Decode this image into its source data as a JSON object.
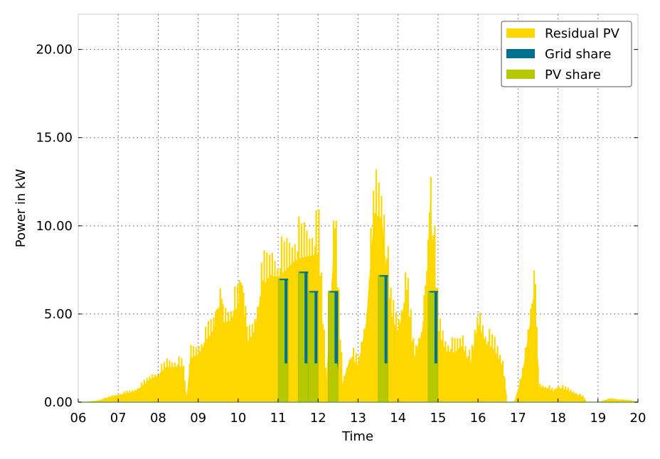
{
  "chart_data": {
    "type": "area",
    "title": "",
    "xlabel": "Time",
    "ylabel": "Power in kW",
    "xlim": [
      6,
      20
    ],
    "ylim": [
      0,
      22
    ],
    "x_ticks": [
      "06",
      "07",
      "08",
      "09",
      "10",
      "11",
      "12",
      "13",
      "14",
      "15",
      "16",
      "17",
      "18",
      "19",
      "20"
    ],
    "y_ticks": [
      "0.00",
      "5.00",
      "10.00",
      "15.00",
      "20.00"
    ],
    "y_tick_values": [
      0,
      5,
      10,
      15,
      20
    ],
    "grid": true,
    "legend_position": "upper right",
    "legend": [
      "Residual PV",
      "Grid share",
      "PV share"
    ],
    "colors": {
      "residual_pv": "#FFD700",
      "grid_share": "#00708F",
      "pv_share": "#B5C800",
      "baseline": "#6a9a5a"
    },
    "series": [
      {
        "name": "Residual PV",
        "x": [
          6.0,
          6.3,
          6.5,
          6.8,
          7.0,
          7.2,
          7.4,
          7.6,
          7.8,
          8.0,
          8.2,
          8.4,
          8.6,
          8.7,
          8.8,
          9.0,
          9.2,
          9.4,
          9.5,
          9.6,
          9.8,
          10.0,
          10.1,
          10.2,
          10.4,
          10.6,
          10.8,
          11.0,
          11.2,
          11.4,
          11.6,
          11.8,
          12.0,
          12.2,
          12.4,
          12.6,
          12.8,
          13.0,
          13.2,
          13.4,
          13.6,
          13.8,
          14.0,
          14.2,
          14.4,
          14.6,
          14.7,
          14.8,
          15.0,
          15.2,
          15.4,
          15.6,
          15.8,
          16.0,
          16.2,
          16.4,
          16.6,
          16.7,
          16.9,
          17.1,
          17.3,
          17.4,
          17.5,
          17.7,
          17.9,
          18.0,
          18.2,
          18.4,
          18.6,
          18.7,
          19.0,
          19.3,
          19.5,
          19.8,
          20.0
        ],
        "values": [
          0.0,
          0.05,
          0.1,
          0.3,
          0.4,
          0.5,
          0.6,
          0.9,
          1.3,
          1.5,
          2.0,
          2.0,
          2.0,
          0.0,
          2.5,
          2.7,
          3.4,
          4.2,
          5.2,
          4.5,
          4.6,
          5.5,
          6.0,
          3.3,
          4.0,
          6.5,
          7.2,
          7.1,
          7.5,
          8.0,
          8.2,
          8.3,
          8.4,
          1.0,
          9.3,
          1.0,
          2.5,
          2.1,
          4.5,
          10.7,
          10.4,
          5.0,
          4.0,
          6.0,
          2.5,
          4.0,
          6.0,
          11.4,
          4.0,
          2.9,
          2.8,
          3.2,
          2.1,
          4.5,
          3.3,
          3.0,
          2.1,
          0.0,
          0.0,
          1.5,
          4.5,
          6.0,
          0.9,
          0.8,
          0.6,
          0.8,
          0.7,
          0.5,
          0.3,
          0.0,
          0.0,
          0.2,
          0.15,
          0.1,
          0.0
        ]
      },
      {
        "name": "Grid share",
        "x": [
          11.0,
          11.2,
          11.25,
          11.5,
          11.7,
          11.75,
          11.75,
          12.0,
          12.2,
          12.25,
          12.5,
          13.5,
          13.7,
          13.75,
          14.75,
          14.95,
          15.0
        ],
        "values": [
          7.0,
          7.0,
          2.0,
          7.4,
          7.4,
          6.3,
          6.3,
          6.3,
          6.3,
          6.3,
          6.3,
          7.2,
          7.2,
          5.0,
          6.3,
          6.3,
          6.3
        ]
      },
      {
        "name": "PV share",
        "x": [
          11.0,
          11.25,
          11.5,
          11.75,
          11.75,
          12.0,
          12.25,
          12.5,
          13.5,
          13.75,
          14.75,
          15.0
        ],
        "values": [
          7.0,
          7.0,
          7.4,
          7.4,
          6.3,
          6.3,
          6.3,
          6.3,
          7.2,
          7.2,
          6.3,
          6.3
        ]
      }
    ],
    "blocks": [
      {
        "start": 11.0,
        "end": 11.25,
        "pv_share": 7.0,
        "grid_share_top": 7.0
      },
      {
        "start": 11.5,
        "end": 11.75,
        "pv_share": 7.4,
        "grid_share_top": 7.4
      },
      {
        "start": 11.75,
        "end": 12.0,
        "pv_share": 6.3,
        "grid_share_top": 6.3
      },
      {
        "start": 12.25,
        "end": 12.5,
        "pv_share": 6.3,
        "grid_share_top": 6.3
      },
      {
        "start": 13.5,
        "end": 13.75,
        "pv_share": 7.2,
        "grid_share_top": 7.2
      },
      {
        "start": 14.75,
        "end": 15.0,
        "pv_share": 6.3,
        "grid_share_top": 6.3
      }
    ]
  }
}
